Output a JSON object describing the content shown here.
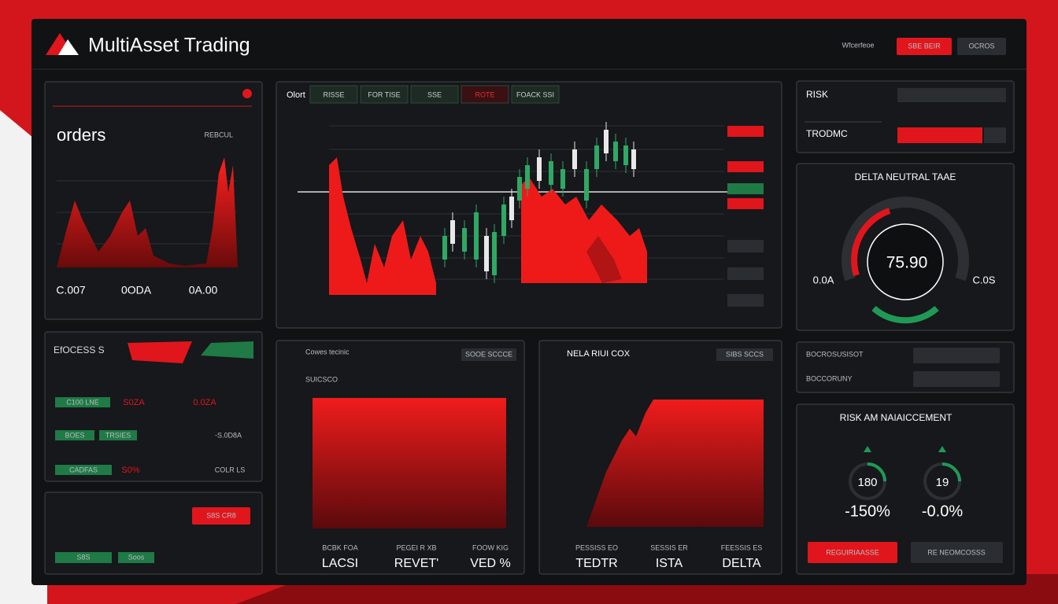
{
  "header": {
    "title": "MultiAsset Trading",
    "status": "Wfcerfeoe",
    "buttons": [
      "SBE BEIR",
      "OCROS"
    ]
  },
  "orders_panel": {
    "title": "orders",
    "link": "REBCUL",
    "stats": [
      "C.007",
      "0ODA",
      "0A.00"
    ]
  },
  "order_book": {
    "title": "EfOCESS S",
    "rows": [
      [
        "C100 LNE",
        "S0ZA",
        "0.0ZA"
      ],
      [
        "BOES",
        "TRSIES",
        "-S.0D8A"
      ],
      [
        "CADFAS",
        "S0%",
        "COLR LS"
      ]
    ]
  },
  "positions": {
    "buttons": [
      "S8S",
      "Soos"
    ],
    "tag": "S8S CR8"
  },
  "main_chart": {
    "title": "Olort",
    "tabs": [
      "RISSE",
      "FOR TISE",
      "SSE",
      "ROTE",
      "FOACK SSI"
    ]
  },
  "volume_panel": {
    "title": "Cowes tecinic",
    "badge": "SOOE SCCCE",
    "label": "SUICSCO",
    "stats": [
      {
        "label": "BCBK FOA",
        "value": "LACSI"
      },
      {
        "label": "PEGEI R XB",
        "value": "REVET'"
      },
      {
        "label": "FOOW KIG",
        "value": "VED %"
      }
    ]
  },
  "risk_box": {
    "title": "NELA RIUI COX",
    "badge": "SIBS SCCS",
    "stats": [
      {
        "label": "PESSISS EO",
        "value": "TEDTR"
      },
      {
        "label": "SESSIS ER",
        "value": "ISTA"
      },
      {
        "label": "FEESSIS ES",
        "value": "DELTA"
      }
    ]
  },
  "risk_panel": {
    "rows": [
      "RISK",
      "TRODMC"
    ]
  },
  "gauge": {
    "title": "DELTA NEUTRAL TAAE",
    "value": "75.90",
    "left": "0.0A",
    "right": "C.0S"
  },
  "alerts": {
    "rows": [
      "BOCROSUSISOT",
      "BOCCORUNY"
    ]
  },
  "risk_management": {
    "title": "RISK AM NAIAICCEMENT",
    "metrics": [
      {
        "value": "180",
        "change": "-150%"
      },
      {
        "value": "19",
        "change": "-0.0%"
      }
    ],
    "buttons": [
      "REGUIRIAASSE",
      "RE NEOMCOSSS"
    ]
  }
}
